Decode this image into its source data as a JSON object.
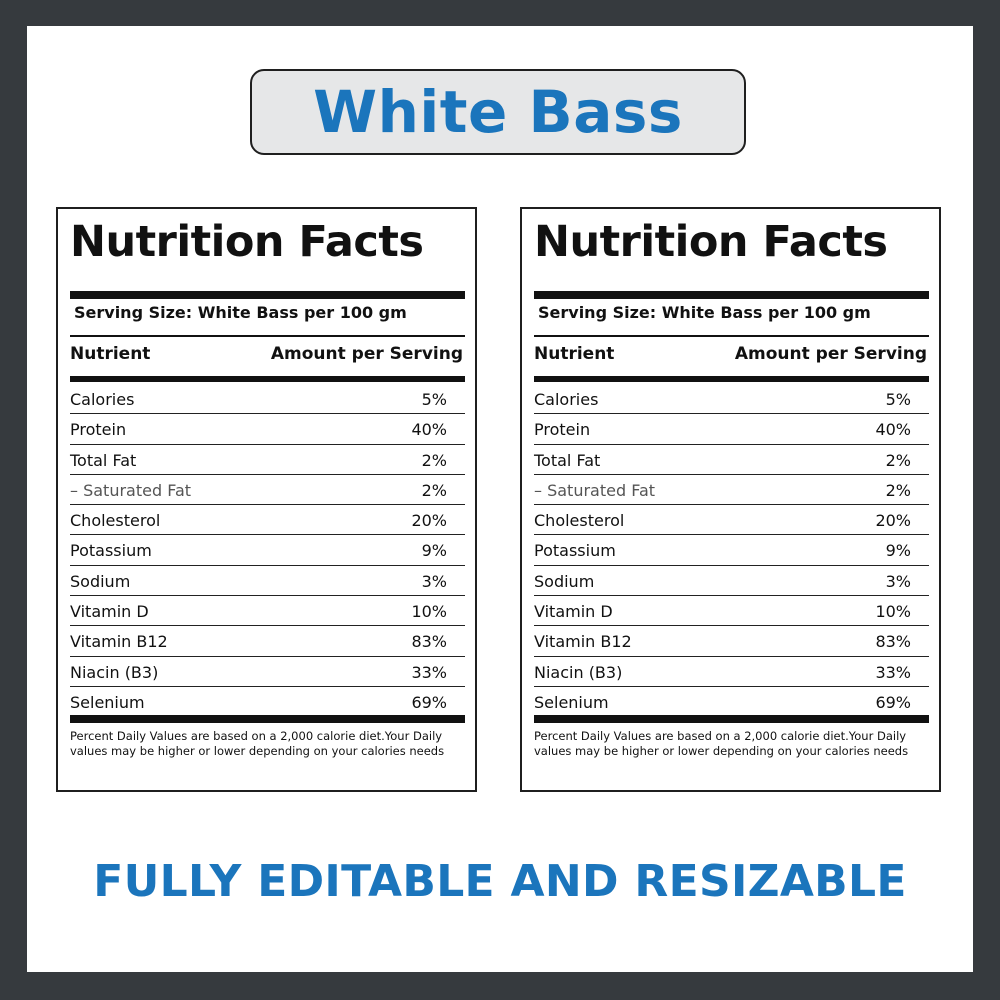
{
  "title": "White Bass",
  "footer_banner": "FULLY EDITABLE AND RESIZABLE",
  "colors": {
    "accent": "#1b75bc",
    "frame": "#363a3e",
    "title_box": "#e6e7e8"
  },
  "labels": [
    {
      "heading": "Nutrition Facts",
      "serving_size": "Serving Size: White Bass per 100 gm",
      "col_nutrient": "Nutrient",
      "col_amount": "Amount per Serving",
      "rows": [
        {
          "name": "Calories",
          "value": "5%"
        },
        {
          "name": "Protein",
          "value": "40%"
        },
        {
          "name": "Total Fat",
          "value": "2%"
        },
        {
          "name": "– Saturated Fat",
          "value": "2%"
        },
        {
          "name": "Cholesterol",
          "value": "20%"
        },
        {
          "name": "Potassium",
          "value": "9%"
        },
        {
          "name": "Sodium",
          "value": "3%"
        },
        {
          "name": "Vitamin D",
          "value": "10%"
        },
        {
          "name": "Vitamin B12",
          "value": "83%"
        },
        {
          "name": "Niacin (B3)",
          "value": "33%"
        },
        {
          "name": "Selenium",
          "value": "69%"
        }
      ],
      "footnote": "Percent Daily Values are based on a 2,000 calorie diet.Your Daily values may be higher or lower depending on your calories needs"
    },
    {
      "heading": "Nutrition Facts",
      "serving_size": "Serving Size: White Bass per 100 gm",
      "col_nutrient": "Nutrient",
      "col_amount": "Amount per Serving",
      "rows": [
        {
          "name": "Calories",
          "value": "5%"
        },
        {
          "name": "Protein",
          "value": "40%"
        },
        {
          "name": "Total Fat",
          "value": "2%"
        },
        {
          "name": "– Saturated Fat",
          "value": "2%"
        },
        {
          "name": "Cholesterol",
          "value": "20%"
        },
        {
          "name": "Potassium",
          "value": "9%"
        },
        {
          "name": "Sodium",
          "value": "3%"
        },
        {
          "name": "Vitamin D",
          "value": "10%"
        },
        {
          "name": "Vitamin B12",
          "value": "83%"
        },
        {
          "name": "Niacin (B3)",
          "value": "33%"
        },
        {
          "name": "Selenium",
          "value": "69%"
        }
      ],
      "footnote": "Percent Daily Values are based on a 2,000 calorie diet.Your Daily values may be higher or lower depending on your calories needs"
    }
  ]
}
